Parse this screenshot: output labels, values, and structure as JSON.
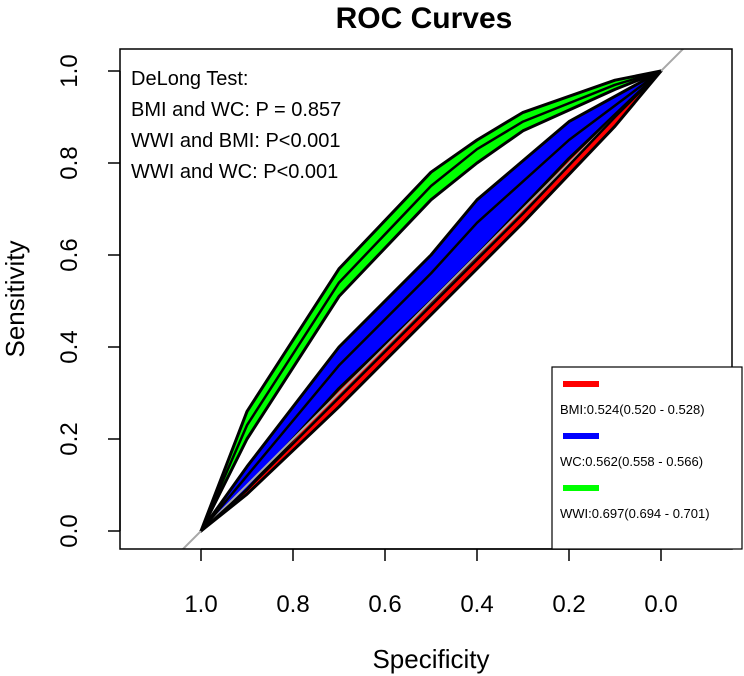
{
  "chart_data": {
    "type": "line",
    "title": "ROC Curves",
    "xlabel": "Specificity",
    "ylabel": "Sensitivity",
    "xlim": [
      1.0,
      0.0
    ],
    "ylim": [
      0.0,
      1.0
    ],
    "x_ticks": [
      "1.0",
      "0.8",
      "0.6",
      "0.4",
      "0.2",
      "0.0"
    ],
    "y_ticks": [
      "0.0",
      "0.2",
      "0.4",
      "0.6",
      "0.8",
      "1.0"
    ],
    "annotation": {
      "heading": "DeLong Test:",
      "lines": [
        "BMI and WC: P = 0.857",
        "WWI and BMI: P<0.001",
        "WWI and WC: P<0.001"
      ]
    },
    "legend_position": "bottom-right",
    "series": [
      {
        "name": "BMI",
        "legend_label": "BMI:0.524(0.520 - 0.528)",
        "color": "#ff0000",
        "specificity": [
          1.0,
          0.9,
          0.7,
          0.5,
          0.3,
          0.1,
          0.0
        ],
        "sensitivity": [
          0.0,
          0.09,
          0.29,
          0.49,
          0.69,
          0.9,
          1.0
        ],
        "ci_lower": [
          0.0,
          0.08,
          0.27,
          0.47,
          0.67,
          0.88,
          1.0
        ],
        "ci_upper": [
          0.0,
          0.11,
          0.32,
          0.52,
          0.72,
          0.92,
          1.0
        ]
      },
      {
        "name": "WC",
        "legend_label": "WC:0.562(0.558 - 0.566)",
        "color": "#0000ff",
        "specificity": [
          1.0,
          0.9,
          0.7,
          0.5,
          0.4,
          0.2,
          0.0
        ],
        "sensitivity": [
          0.0,
          0.12,
          0.36,
          0.56,
          0.67,
          0.85,
          1.0
        ],
        "ci_lower": [
          0.0,
          0.09,
          0.31,
          0.5,
          0.6,
          0.81,
          1.0
        ],
        "ci_upper": [
          0.0,
          0.14,
          0.4,
          0.6,
          0.72,
          0.89,
          1.0
        ]
      },
      {
        "name": "WWI",
        "legend_label": "WWI:0.697(0.694 - 0.701)",
        "color": "#00ff00",
        "specificity": [
          1.0,
          0.9,
          0.7,
          0.5,
          0.4,
          0.3,
          0.1,
          0.0
        ],
        "sensitivity": [
          0.0,
          0.23,
          0.54,
          0.75,
          0.83,
          0.89,
          0.97,
          1.0
        ],
        "ci_lower": [
          0.0,
          0.2,
          0.51,
          0.72,
          0.8,
          0.87,
          0.96,
          1.0
        ],
        "ci_upper": [
          0.0,
          0.26,
          0.57,
          0.78,
          0.85,
          0.91,
          0.98,
          1.0
        ]
      }
    ]
  }
}
